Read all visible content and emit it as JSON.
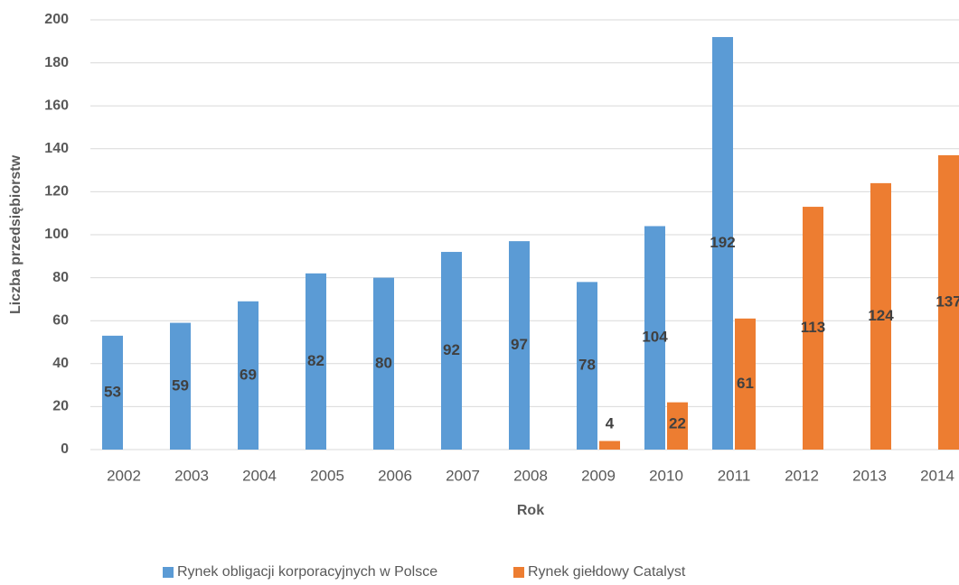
{
  "chart_data": {
    "type": "bar",
    "x_label": "Rok",
    "y_label": "Liczba przedsiębiorstw",
    "categories": [
      "2002",
      "2003",
      "2004",
      "2005",
      "2006",
      "2007",
      "2008",
      "2009",
      "2010",
      "2011",
      "2012",
      "2013",
      "2014"
    ],
    "series": [
      {
        "name": "Rynek obligacji korporacyjnych w Polsce",
        "color": "#5b9bd5",
        "values": [
          53,
          59,
          69,
          82,
          80,
          92,
          97,
          78,
          104,
          192,
          null,
          null,
          null
        ]
      },
      {
        "name": "Rynek giełdowy Catalyst",
        "color": "#ed7d31",
        "values": [
          null,
          null,
          null,
          null,
          null,
          null,
          null,
          4,
          22,
          61,
          113,
          124,
          137
        ]
      }
    ],
    "ylim": [
      0,
      200
    ],
    "yticks": [
      0,
      20,
      40,
      60,
      80,
      100,
      120,
      140,
      160,
      180,
      200
    ],
    "grid": true,
    "legend": "bottom"
  }
}
